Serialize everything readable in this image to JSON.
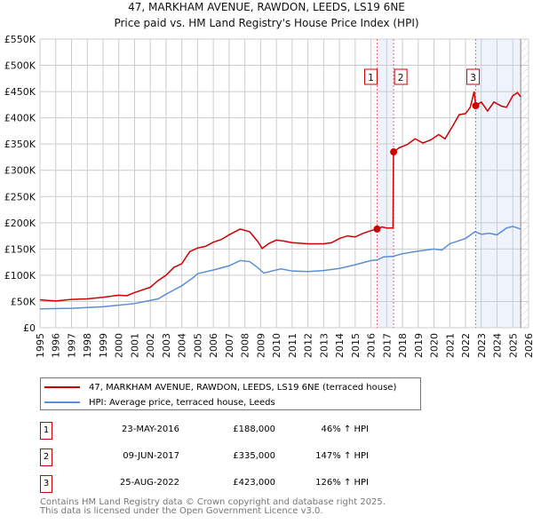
{
  "chart_data": {
    "type": "line",
    "title": "47, MARKHAM AVENUE, RAWDON, LEEDS, LS19 6NE",
    "subtitle": "Price paid vs. HM Land Registry's House Price Index (HPI)",
    "xlim": [
      1995,
      2026
    ],
    "ylim": [
      0,
      550000
    ],
    "y_ticks": [
      {
        "v": 0,
        "label": "£0"
      },
      {
        "v": 50000,
        "label": "£50K"
      },
      {
        "v": 100000,
        "label": "£100K"
      },
      {
        "v": 150000,
        "label": "£150K"
      },
      {
        "v": 200000,
        "label": "£200K"
      },
      {
        "v": 250000,
        "label": "£250K"
      },
      {
        "v": 300000,
        "label": "£300K"
      },
      {
        "v": 350000,
        "label": "£350K"
      },
      {
        "v": 400000,
        "label": "£400K"
      },
      {
        "v": 450000,
        "label": "£450K"
      },
      {
        "v": 500000,
        "label": "£500K"
      },
      {
        "v": 550000,
        "label": "£550K"
      }
    ],
    "x_ticks": [
      "1995",
      "1996",
      "1997",
      "1998",
      "1999",
      "2000",
      "2001",
      "2002",
      "2003",
      "2004",
      "2005",
      "2006",
      "2007",
      "2008",
      "2009",
      "2010",
      "2011",
      "2012",
      "2013",
      "2014",
      "2015",
      "2016",
      "2017",
      "2018",
      "2019",
      "2020",
      "2021",
      "2022",
      "2023",
      "2024",
      "2025",
      "2026"
    ],
    "grid": true,
    "series": [
      {
        "name": "47, MARKHAM AVENUE, RAWDON, LEEDS, LS19 6NE (terraced house)",
        "color": "#cc0000",
        "x": [
          1995,
          1996,
          1997,
          1998,
          1999,
          2000,
          2000.5,
          2001,
          2002,
          2002.5,
          2003,
          2003.5,
          2004,
          2004.5,
          2005,
          2005.5,
          2006,
          2006.5,
          2007,
          2007.7,
          2008.3,
          2008.8,
          2009.1,
          2009.5,
          2010,
          2010.5,
          2011,
          2012,
          2013,
          2013.5,
          2014,
          2014.5,
          2015,
          2015.5,
          2016,
          2016.4,
          2016.7,
          2017,
          2017.4,
          2017.43,
          2017.8,
          2018.3,
          2018.8,
          2019.3,
          2019.8,
          2020.3,
          2020.7,
          2021.2,
          2021.6,
          2022,
          2022.3,
          2022.55,
          2022.65,
          2023,
          2023.4,
          2023.8,
          2024.3,
          2024.6,
          2025,
          2025.3,
          2025.5
        ],
        "y": [
          53000,
          51000,
          54000,
          55000,
          58000,
          62000,
          61000,
          67000,
          77000,
          90000,
          100000,
          115000,
          122000,
          145000,
          152000,
          155000,
          163000,
          168000,
          177000,
          188000,
          183000,
          165000,
          151000,
          160000,
          167000,
          165000,
          162000,
          160000,
          160000,
          162000,
          170000,
          175000,
          173000,
          180000,
          185000,
          188000,
          192000,
          190000,
          190000,
          335000,
          343000,
          349000,
          360000,
          352000,
          358000,
          368000,
          360000,
          385000,
          406000,
          408000,
          420000,
          450000,
          423000,
          430000,
          413000,
          430000,
          422000,
          420000,
          442000,
          448000,
          440000
        ]
      },
      {
        "name": "HPI: Average price, terraced house, Leeds",
        "color": "#5b8fd4",
        "x": [
          1995,
          1997,
          1999,
          2000,
          2001,
          2002,
          2002.5,
          2003,
          2004,
          2004.7,
          2005,
          2006,
          2007,
          2007.7,
          2008.3,
          2008.8,
          2009.2,
          2009.7,
          2010.3,
          2011,
          2012,
          2013,
          2014,
          2015,
          2016,
          2016.4,
          2016.8,
          2017.4,
          2018,
          2019,
          2020,
          2020.5,
          2021,
          2022,
          2022.6,
          2023,
          2023.5,
          2024,
          2024.6,
          2025,
          2025.5
        ],
        "y": [
          36000,
          37000,
          40000,
          43000,
          46000,
          52000,
          55000,
          64000,
          80000,
          95000,
          103000,
          110000,
          118000,
          128000,
          126000,
          115000,
          104000,
          108000,
          112000,
          108000,
          107000,
          109000,
          113000,
          120000,
          128000,
          129000,
          135000,
          136000,
          141000,
          146000,
          150000,
          148000,
          160000,
          170000,
          183000,
          178000,
          180000,
          177000,
          190000,
          193000,
          188000
        ]
      }
    ],
    "sales": [
      {
        "n": "1",
        "x": 2016.39,
        "y": 188000,
        "date": "23-MAY-2016",
        "price": "£188,000",
        "hpi": "46% ↑ HPI"
      },
      {
        "n": "2",
        "x": 2017.44,
        "y": 335000,
        "date": "09-JUN-2017",
        "price": "£335,000",
        "hpi": "147% ↑ HPI"
      },
      {
        "n": "3",
        "x": 2022.65,
        "y": 423000,
        "date": "25-AUG-2022",
        "price": "£423,000",
        "hpi": "126% ↑ HPI"
      }
    ],
    "shaded": [
      [
        2016.39,
        2017.44
      ],
      [
        2022.65,
        2025.5
      ]
    ],
    "hatched_from": 2025.5
  },
  "legend": {
    "red": "47, MARKHAM AVENUE, RAWDON, LEEDS, LS19 6NE (terraced house)",
    "blue": "HPI: Average price, terraced house, Leeds"
  },
  "footer": {
    "line1": "Contains HM Land Registry data © Crown copyright and database right 2025.",
    "line2": "This data is licensed under the Open Government Licence v3.0."
  }
}
